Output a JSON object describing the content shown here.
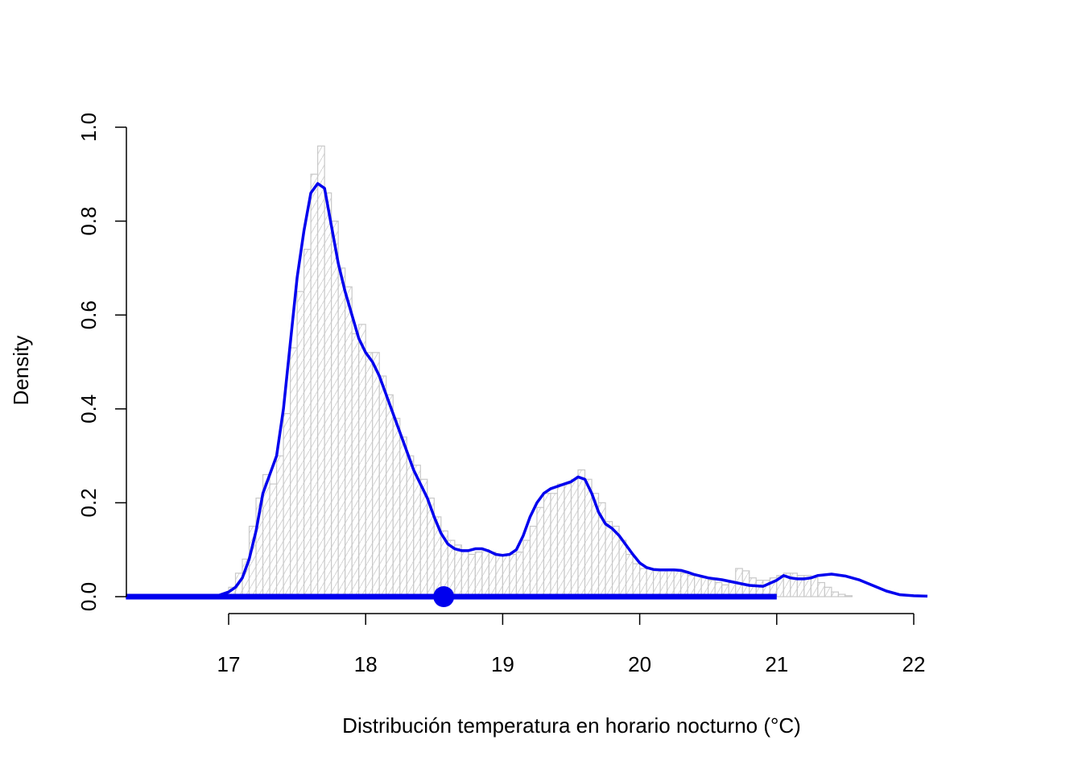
{
  "chart_data": {
    "type": "area",
    "xlabel": "Distribución temperatura en horario nocturno (°C)",
    "ylabel": "Density",
    "xlim": [
      16.25,
      22.1
    ],
    "ylim": [
      0.0,
      1.0
    ],
    "xticks": [
      "17",
      "18",
      "19",
      "20",
      "21",
      "22"
    ],
    "yticks": [
      "0.0",
      "0.2",
      "0.4",
      "0.6",
      "0.8",
      "1.0"
    ],
    "grid": false,
    "histogram": {
      "bin_width": 0.05,
      "x_start": 17.0,
      "values": [
        0.02,
        0.05,
        0.08,
        0.15,
        0.21,
        0.26,
        0.24,
        0.3,
        0.39,
        0.53,
        0.65,
        0.74,
        0.9,
        0.96,
        0.86,
        0.8,
        0.7,
        0.66,
        0.56,
        0.58,
        0.52,
        0.52,
        0.47,
        0.43,
        0.38,
        0.34,
        0.3,
        0.28,
        0.25,
        0.21,
        0.17,
        0.14,
        0.12,
        0.11,
        0.1,
        0.09,
        0.095,
        0.1,
        0.095,
        0.09,
        0.088,
        0.09,
        0.095,
        0.12,
        0.15,
        0.19,
        0.22,
        0.22,
        0.24,
        0.24,
        0.25,
        0.27,
        0.25,
        0.22,
        0.2,
        0.16,
        0.15,
        0.12,
        0.09,
        0.07,
        0.06,
        0.06,
        0.055,
        0.055,
        0.055,
        0.055,
        0.05,
        0.045,
        0.045,
        0.04,
        0.035,
        0.03,
        0.025,
        0.03,
        0.06,
        0.055,
        0.04,
        0.035,
        0.035,
        0.04,
        0.045,
        0.05,
        0.05,
        0.045,
        0.045,
        0.04,
        0.03,
        0.02,
        0.01,
        0.005,
        0.002
      ]
    },
    "density": {
      "x": [
        16.25,
        16.9,
        17.0,
        17.05,
        17.1,
        17.15,
        17.2,
        17.25,
        17.3,
        17.35,
        17.4,
        17.45,
        17.5,
        17.55,
        17.6,
        17.65,
        17.7,
        17.75,
        17.8,
        17.85,
        17.9,
        17.95,
        18.0,
        18.05,
        18.1,
        18.15,
        18.2,
        18.25,
        18.3,
        18.35,
        18.4,
        18.45,
        18.5,
        18.55,
        18.6,
        18.65,
        18.7,
        18.75,
        18.8,
        18.85,
        18.9,
        18.95,
        19.0,
        19.05,
        19.1,
        19.15,
        19.2,
        19.25,
        19.3,
        19.35,
        19.4,
        19.45,
        19.5,
        19.55,
        19.6,
        19.65,
        19.7,
        19.75,
        19.8,
        19.85,
        19.9,
        19.95,
        20.0,
        20.05,
        20.1,
        20.15,
        20.2,
        20.25,
        20.3,
        20.35,
        20.4,
        20.5,
        20.6,
        20.7,
        20.8,
        20.9,
        21.0,
        21.05,
        21.1,
        21.15,
        21.2,
        21.25,
        21.3,
        21.4,
        21.5,
        21.6,
        21.7,
        21.8,
        21.9,
        22.0,
        22.1
      ],
      "y": [
        0.0,
        0.0,
        0.01,
        0.02,
        0.04,
        0.08,
        0.14,
        0.22,
        0.26,
        0.3,
        0.4,
        0.54,
        0.68,
        0.78,
        0.86,
        0.88,
        0.87,
        0.79,
        0.71,
        0.65,
        0.6,
        0.55,
        0.52,
        0.5,
        0.47,
        0.43,
        0.39,
        0.35,
        0.31,
        0.27,
        0.24,
        0.21,
        0.17,
        0.135,
        0.112,
        0.102,
        0.098,
        0.098,
        0.102,
        0.102,
        0.097,
        0.09,
        0.088,
        0.09,
        0.1,
        0.13,
        0.17,
        0.2,
        0.22,
        0.23,
        0.235,
        0.24,
        0.245,
        0.255,
        0.25,
        0.22,
        0.18,
        0.155,
        0.145,
        0.13,
        0.11,
        0.09,
        0.072,
        0.062,
        0.058,
        0.057,
        0.057,
        0.057,
        0.056,
        0.052,
        0.047,
        0.04,
        0.036,
        0.03,
        0.024,
        0.022,
        0.035,
        0.045,
        0.04,
        0.038,
        0.038,
        0.04,
        0.045,
        0.048,
        0.044,
        0.036,
        0.024,
        0.012,
        0.004,
        0.002,
        0.001
      ]
    },
    "range": {
      "min": 16.25,
      "max": 21.0,
      "y": 0.0
    },
    "mean_point": {
      "x": 18.57,
      "y": 0.0
    },
    "colors": {
      "density": "#0000ee",
      "histogram_stroke": "#c8c8c8",
      "histogram_fill": "#ffffff"
    }
  }
}
